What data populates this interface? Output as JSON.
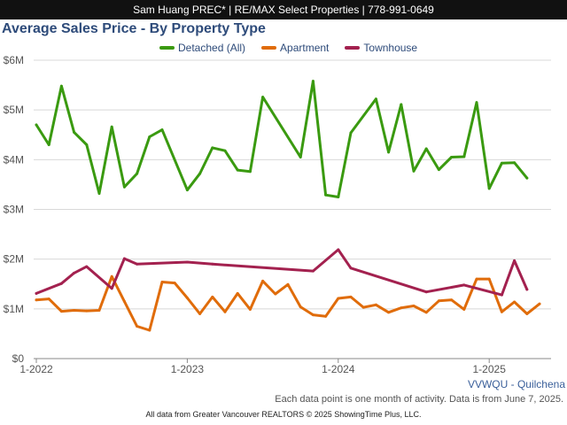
{
  "header": {
    "banner": "Sam Huang PREC* | RE/MAX Select Properties | 778-991-0649"
  },
  "colors": {
    "title": "#2e4b7a",
    "detached": "#3a9a10",
    "apartment": "#e06c0a",
    "townhouse": "#a3214f",
    "grid": "#d8d8d8",
    "axis": "#888888",
    "tick_text": "#555555"
  },
  "footer": {
    "source_tag": "VVWQU - Quilchena",
    "footnote": "Each data point is one month of activity. Data is from June 7, 2025.",
    "credits": "All data from Greater Vancouver REALTORS © 2025 ShowingTime Plus, LLC."
  },
  "chart_data": {
    "type": "line",
    "title": "Average Sales Price - By Property Type",
    "xlabel": "",
    "ylabel": "",
    "x_ticks": [
      "1-2022",
      "1-2023",
      "1-2024",
      "1-2025"
    ],
    "x_range": [
      "2022-01",
      "2025-06"
    ],
    "y_ticks": [
      "$0",
      "$1M",
      "$2M",
      "$3M",
      "$4M",
      "$5M",
      "$6M"
    ],
    "ylim": [
      0,
      6000000
    ],
    "grid": true,
    "legend_position": "top",
    "series": [
      {
        "name": "Detached (All)",
        "color": "#3a9a10",
        "points": [
          [
            "2022-01",
            4700000
          ],
          [
            "2022-02",
            4300000
          ],
          [
            "2022-03",
            5480000
          ],
          [
            "2022-04",
            4550000
          ],
          [
            "2022-05",
            4300000
          ],
          [
            "2022-06",
            3320000
          ],
          [
            "2022-07",
            4660000
          ],
          [
            "2022-08",
            3450000
          ],
          [
            "2022-09",
            3720000
          ],
          [
            "2022-10",
            4460000
          ],
          [
            "2022-11",
            4600000
          ],
          [
            "2023-01",
            3390000
          ],
          [
            "2023-02",
            3720000
          ],
          [
            "2023-03",
            4240000
          ],
          [
            "2023-04",
            4180000
          ],
          [
            "2023-05",
            3790000
          ],
          [
            "2023-06",
            3760000
          ],
          [
            "2023-07",
            5260000
          ],
          [
            "2023-10",
            4050000
          ],
          [
            "2023-11",
            5580000
          ],
          [
            "2023-12",
            3290000
          ],
          [
            "2024-01",
            3250000
          ],
          [
            "2024-02",
            4540000
          ],
          [
            "2024-04",
            5220000
          ],
          [
            "2024-05",
            4150000
          ],
          [
            "2024-06",
            5110000
          ],
          [
            "2024-07",
            3770000
          ],
          [
            "2024-08",
            4220000
          ],
          [
            "2024-09",
            3800000
          ],
          [
            "2024-10",
            4050000
          ],
          [
            "2024-11",
            4060000
          ],
          [
            "2024-12",
            5150000
          ],
          [
            "2025-01",
            3420000
          ],
          [
            "2025-02",
            3930000
          ],
          [
            "2025-03",
            3940000
          ],
          [
            "2025-04",
            3630000
          ]
        ]
      },
      {
        "name": "Apartment",
        "color": "#e06c0a",
        "points": [
          [
            "2022-01",
            1180000
          ],
          [
            "2022-02",
            1200000
          ],
          [
            "2022-03",
            950000
          ],
          [
            "2022-04",
            970000
          ],
          [
            "2022-05",
            960000
          ],
          [
            "2022-06",
            970000
          ],
          [
            "2022-07",
            1650000
          ],
          [
            "2022-08",
            1150000
          ],
          [
            "2022-09",
            650000
          ],
          [
            "2022-10",
            570000
          ],
          [
            "2022-11",
            1540000
          ],
          [
            "2022-12",
            1520000
          ],
          [
            "2023-01",
            1220000
          ],
          [
            "2023-02",
            900000
          ],
          [
            "2023-03",
            1240000
          ],
          [
            "2023-04",
            940000
          ],
          [
            "2023-05",
            1310000
          ],
          [
            "2023-06",
            990000
          ],
          [
            "2023-07",
            1560000
          ],
          [
            "2023-08",
            1300000
          ],
          [
            "2023-09",
            1490000
          ],
          [
            "2023-10",
            1040000
          ],
          [
            "2023-11",
            880000
          ],
          [
            "2023-12",
            850000
          ],
          [
            "2024-01",
            1210000
          ],
          [
            "2024-02",
            1240000
          ],
          [
            "2024-03",
            1030000
          ],
          [
            "2024-04",
            1080000
          ],
          [
            "2024-05",
            930000
          ],
          [
            "2024-06",
            1020000
          ],
          [
            "2024-07",
            1060000
          ],
          [
            "2024-08",
            930000
          ],
          [
            "2024-09",
            1160000
          ],
          [
            "2024-10",
            1180000
          ],
          [
            "2024-11",
            990000
          ],
          [
            "2024-12",
            1600000
          ],
          [
            "2025-01",
            1600000
          ],
          [
            "2025-02",
            940000
          ],
          [
            "2025-03",
            1140000
          ],
          [
            "2025-04",
            900000
          ],
          [
            "2025-05",
            1100000
          ]
        ]
      },
      {
        "name": "Townhouse",
        "color": "#a3214f",
        "points": [
          [
            "2022-01",
            1310000
          ],
          [
            "2022-03",
            1510000
          ],
          [
            "2022-04",
            1720000
          ],
          [
            "2022-05",
            1850000
          ],
          [
            "2022-07",
            1410000
          ],
          [
            "2022-08",
            2010000
          ],
          [
            "2022-09",
            1900000
          ],
          [
            "2023-01",
            1940000
          ],
          [
            "2023-03",
            1900000
          ],
          [
            "2023-11",
            1760000
          ],
          [
            "2024-01",
            2190000
          ],
          [
            "2024-02",
            1820000
          ],
          [
            "2024-08",
            1340000
          ],
          [
            "2024-11",
            1480000
          ],
          [
            "2025-02",
            1280000
          ],
          [
            "2025-03",
            1970000
          ],
          [
            "2025-04",
            1390000
          ]
        ]
      }
    ]
  }
}
